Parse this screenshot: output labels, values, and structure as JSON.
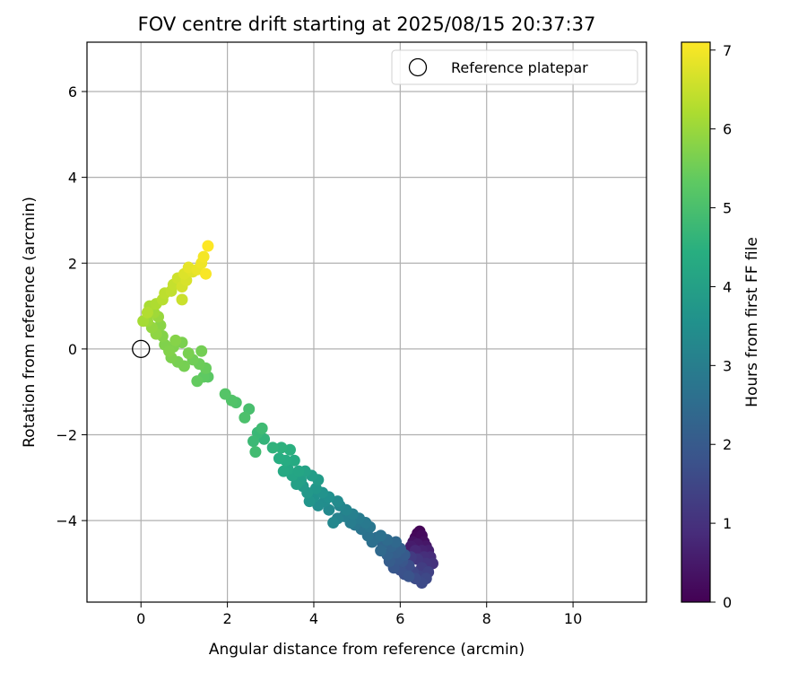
{
  "chart_data": {
    "type": "scatter",
    "title": "FOV centre drift starting at 2025/08/15 20:37:37",
    "xlabel": "Angular distance from reference (arcmin)",
    "ylabel": "Rotation from reference (arcmin)",
    "xlim": [
      -1.25,
      11.7
    ],
    "ylim": [
      -5.9,
      7.15
    ],
    "xticks": [
      0,
      2,
      4,
      6,
      8,
      10
    ],
    "yticks": [
      -4,
      -2,
      0,
      2,
      4,
      6
    ],
    "xtick_labels": [
      "0",
      "2",
      "4",
      "6",
      "8",
      "10"
    ],
    "ytick_labels": [
      "−4",
      "−2",
      "0",
      "2",
      "4",
      "6"
    ],
    "grid": true,
    "legend": {
      "placement": "top-right",
      "entries": [
        {
          "label": "Reference platepar",
          "marker": "open-circle"
        }
      ]
    },
    "colorbar": {
      "label": "Hours from first FF file",
      "colormap": "viridis",
      "range": [
        0,
        7.1
      ],
      "ticks": [
        0,
        1,
        2,
        3,
        4,
        5,
        6,
        7
      ],
      "tick_labels": [
        "0",
        "1",
        "2",
        "3",
        "4",
        "5",
        "6",
        "7"
      ]
    },
    "reference_point": {
      "x": 0,
      "y": 0
    },
    "series": [
      {
        "points": [
          [
            6.45,
            -4.25,
            0.05
          ],
          [
            6.4,
            -4.3,
            0.1
          ],
          [
            6.35,
            -4.4,
            0.15
          ],
          [
            6.5,
            -4.35,
            0.2
          ],
          [
            6.55,
            -4.5,
            0.3
          ],
          [
            6.3,
            -4.5,
            0.35
          ],
          [
            6.6,
            -4.6,
            0.45
          ],
          [
            6.4,
            -4.55,
            0.5
          ],
          [
            6.25,
            -4.6,
            0.55
          ],
          [
            6.65,
            -4.7,
            0.65
          ],
          [
            6.5,
            -4.7,
            0.7
          ],
          [
            6.35,
            -4.7,
            0.8
          ],
          [
            6.7,
            -4.85,
            0.9
          ],
          [
            6.55,
            -4.85,
            0.95
          ],
          [
            6.75,
            -5.0,
            1.05
          ],
          [
            6.6,
            -5.0,
            1.1
          ],
          [
            6.4,
            -4.9,
            1.15
          ],
          [
            6.25,
            -4.85,
            1.25
          ],
          [
            6.5,
            -5.1,
            1.3
          ],
          [
            6.65,
            -5.2,
            1.4
          ],
          [
            6.45,
            -5.3,
            1.45
          ],
          [
            6.3,
            -5.2,
            1.5
          ],
          [
            6.6,
            -5.35,
            1.55
          ],
          [
            6.5,
            -5.45,
            1.6
          ],
          [
            6.35,
            -5.35,
            1.65
          ],
          [
            6.2,
            -5.05,
            1.7
          ],
          [
            6.1,
            -5.25,
            1.75
          ],
          [
            6.0,
            -5.15,
            1.8
          ],
          [
            6.2,
            -5.3,
            1.85
          ],
          [
            6.05,
            -4.95,
            1.9
          ],
          [
            5.85,
            -5.1,
            1.95
          ],
          [
            5.95,
            -4.9,
            2.0
          ],
          [
            6.1,
            -4.8,
            2.05
          ],
          [
            5.75,
            -4.95,
            2.1
          ],
          [
            5.9,
            -4.75,
            2.15
          ],
          [
            6.0,
            -4.65,
            2.2
          ],
          [
            5.7,
            -4.8,
            2.25
          ],
          [
            5.8,
            -4.6,
            2.3
          ],
          [
            5.6,
            -4.55,
            2.35
          ],
          [
            5.9,
            -4.5,
            2.4
          ],
          [
            5.55,
            -4.7,
            2.45
          ],
          [
            5.7,
            -4.45,
            2.5
          ],
          [
            5.45,
            -4.4,
            2.55
          ],
          [
            5.35,
            -4.5,
            2.6
          ],
          [
            5.55,
            -4.35,
            2.65
          ],
          [
            5.25,
            -4.35,
            2.7
          ],
          [
            5.1,
            -4.2,
            2.75
          ],
          [
            5.3,
            -4.15,
            2.8
          ],
          [
            4.95,
            -4.1,
            2.85
          ],
          [
            5.2,
            -4.05,
            2.9
          ],
          [
            5.05,
            -3.95,
            2.95
          ],
          [
            4.85,
            -4.05,
            3.0
          ],
          [
            4.7,
            -3.9,
            3.05
          ],
          [
            4.9,
            -3.85,
            3.1
          ],
          [
            4.55,
            -3.95,
            3.15
          ],
          [
            4.75,
            -3.75,
            3.2
          ],
          [
            4.6,
            -3.65,
            3.25
          ],
          [
            4.45,
            -4.05,
            3.3
          ],
          [
            4.35,
            -3.75,
            3.35
          ],
          [
            4.55,
            -3.55,
            3.4
          ],
          [
            4.25,
            -3.55,
            3.45
          ],
          [
            4.1,
            -3.65,
            3.5
          ],
          [
            4.35,
            -3.45,
            3.55
          ],
          [
            4.0,
            -3.45,
            3.6
          ],
          [
            4.2,
            -3.35,
            3.65
          ],
          [
            3.9,
            -3.55,
            3.7
          ],
          [
            4.05,
            -3.25,
            3.75
          ],
          [
            3.85,
            -3.35,
            3.8
          ],
          [
            3.75,
            -3.2,
            3.85
          ],
          [
            4.1,
            -3.05,
            3.9
          ],
          [
            3.95,
            -2.95,
            3.95
          ],
          [
            3.7,
            -3.05,
            4.0
          ],
          [
            3.6,
            -3.15,
            4.05
          ],
          [
            3.8,
            -2.85,
            4.1
          ],
          [
            3.5,
            -2.95,
            4.15
          ],
          [
            3.65,
            -2.85,
            4.2
          ],
          [
            3.4,
            -2.8,
            4.25
          ],
          [
            3.3,
            -2.85,
            4.3
          ],
          [
            3.55,
            -2.6,
            4.35
          ],
          [
            3.35,
            -2.6,
            4.4
          ],
          [
            3.2,
            -2.55,
            4.45
          ],
          [
            3.45,
            -2.35,
            4.5
          ],
          [
            3.25,
            -2.3,
            4.55
          ],
          [
            3.05,
            -2.3,
            4.6
          ],
          [
            2.85,
            -2.1,
            4.65
          ],
          [
            2.7,
            -1.95,
            4.75
          ],
          [
            2.6,
            -2.15,
            4.8
          ],
          [
            2.8,
            -1.85,
            4.85
          ],
          [
            2.65,
            -2.4,
            4.9
          ],
          [
            2.5,
            -1.4,
            5.0
          ],
          [
            2.4,
            -1.6,
            5.05
          ],
          [
            2.2,
            -1.25,
            5.1
          ],
          [
            2.1,
            -1.2,
            5.15
          ],
          [
            1.95,
            -1.05,
            5.2
          ],
          [
            1.55,
            -0.65,
            5.3
          ],
          [
            1.45,
            -0.65,
            5.35
          ],
          [
            1.3,
            -0.75,
            5.4
          ],
          [
            1.5,
            -0.45,
            5.45
          ],
          [
            1.35,
            -0.35,
            5.5
          ],
          [
            1.2,
            -0.25,
            5.55
          ],
          [
            1.4,
            -0.05,
            5.6
          ],
          [
            1.0,
            -0.4,
            5.62
          ],
          [
            0.85,
            -0.3,
            5.64
          ],
          [
            1.1,
            -0.1,
            5.66
          ],
          [
            0.95,
            0.15,
            5.68
          ],
          [
            0.7,
            -0.2,
            5.7
          ],
          [
            0.75,
            0.05,
            5.72
          ],
          [
            0.55,
            0.1,
            5.74
          ],
          [
            0.65,
            -0.05,
            5.76
          ],
          [
            0.5,
            0.3,
            5.78
          ],
          [
            0.8,
            0.2,
            5.8
          ],
          [
            0.45,
            0.55,
            5.85
          ],
          [
            0.35,
            0.35,
            5.9
          ],
          [
            0.25,
            0.5,
            5.95
          ],
          [
            0.4,
            0.75,
            6.0
          ],
          [
            0.15,
            0.65,
            6.05
          ],
          [
            0.3,
            0.85,
            6.1
          ],
          [
            0.05,
            0.65,
            6.15
          ],
          [
            0.2,
            1.0,
            6.2
          ],
          [
            0.35,
            1.05,
            6.25
          ],
          [
            0.15,
            0.85,
            6.3
          ],
          [
            0.5,
            1.15,
            6.35
          ],
          [
            0.55,
            1.3,
            6.4
          ],
          [
            0.7,
            1.35,
            6.45
          ],
          [
            0.75,
            1.5,
            6.5
          ],
          [
            0.95,
            1.15,
            6.55
          ],
          [
            0.85,
            1.65,
            6.6
          ],
          [
            0.95,
            1.45,
            6.65
          ],
          [
            1.05,
            1.6,
            6.7
          ],
          [
            1.0,
            1.75,
            6.75
          ],
          [
            1.2,
            1.8,
            6.8
          ],
          [
            1.1,
            1.9,
            6.85
          ],
          [
            1.3,
            1.85,
            6.9
          ],
          [
            1.4,
            2.0,
            6.95
          ],
          [
            1.45,
            2.15,
            7.0
          ],
          [
            1.5,
            1.75,
            7.05
          ],
          [
            1.55,
            2.4,
            7.1
          ]
        ]
      }
    ]
  }
}
